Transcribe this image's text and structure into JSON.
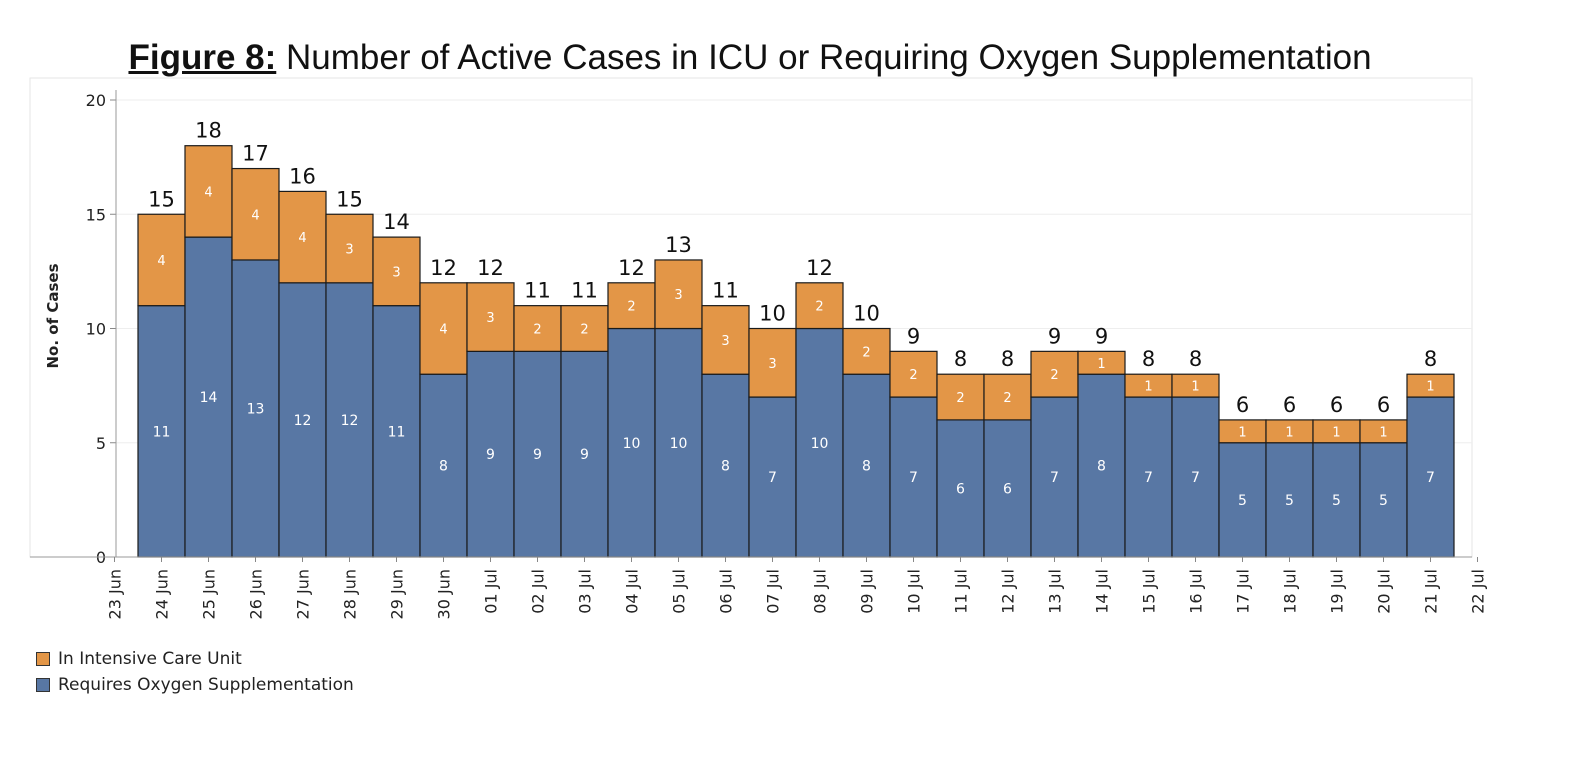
{
  "figure": {
    "label": "Figure 8:",
    "title": "Number of Active Cases in ICU or Requiring Oxygen Supplementation"
  },
  "colors": {
    "icu": "#E39647",
    "oxygen": "#5877A4"
  },
  "chart_data": {
    "type": "bar",
    "stacked": true,
    "ylabel": "No. of Cases",
    "ylim": [
      0,
      20
    ],
    "yticks": [
      0,
      5,
      10,
      15,
      20
    ],
    "grid": true,
    "legend_position": "bottom-left",
    "x_tick_labels": [
      "23 Jun",
      "24 Jun",
      "25 Jun",
      "26 Jun",
      "27 Jun",
      "28 Jun",
      "29 Jun",
      "30 Jun",
      "01 Jul",
      "02 Jul",
      "03 Jul",
      "04 Jul",
      "05 Jul",
      "06 Jul",
      "07 Jul",
      "08 Jul",
      "09 Jul",
      "10 Jul",
      "11 Jul",
      "12 Jul",
      "13 Jul",
      "14 Jul",
      "15 Jul",
      "16 Jul",
      "17 Jul",
      "18 Jul",
      "19 Jul",
      "20 Jul",
      "21 Jul",
      "22 Jul"
    ],
    "categories": [
      "24 Jun",
      "25 Jun",
      "26 Jun",
      "27 Jun",
      "28 Jun",
      "29 Jun",
      "30 Jun",
      "01 Jul",
      "02 Jul",
      "03 Jul",
      "04 Jul",
      "05 Jul",
      "06 Jul",
      "07 Jul",
      "08 Jul",
      "09 Jul",
      "10 Jul",
      "11 Jul",
      "12 Jul",
      "13 Jul",
      "14 Jul",
      "15 Jul",
      "16 Jul",
      "17 Jul",
      "18 Jul",
      "19 Jul",
      "20 Jul",
      "21 Jul"
    ],
    "series": [
      {
        "name": "Requires Oxygen Supplementation",
        "values": [
          11,
          14,
          13,
          12,
          12,
          11,
          8,
          9,
          9,
          9,
          10,
          10,
          8,
          7,
          10,
          8,
          7,
          6,
          6,
          7,
          8,
          7,
          7,
          5,
          5,
          5,
          5,
          7
        ]
      },
      {
        "name": "In Intensive Care Unit",
        "values": [
          4,
          4,
          4,
          4,
          3,
          3,
          4,
          3,
          2,
          2,
          2,
          3,
          3,
          3,
          2,
          2,
          2,
          2,
          2,
          2,
          1,
          1,
          1,
          1,
          1,
          1,
          1,
          1
        ]
      }
    ],
    "totals": [
      15,
      18,
      17,
      16,
      15,
      14,
      12,
      12,
      11,
      11,
      12,
      13,
      11,
      10,
      12,
      10,
      9,
      8,
      8,
      9,
      9,
      8,
      8,
      6,
      6,
      6,
      6,
      8
    ]
  },
  "legend": {
    "icu_label": "In Intensive Care Unit",
    "oxygen_label": "Requires Oxygen Supplementation"
  }
}
